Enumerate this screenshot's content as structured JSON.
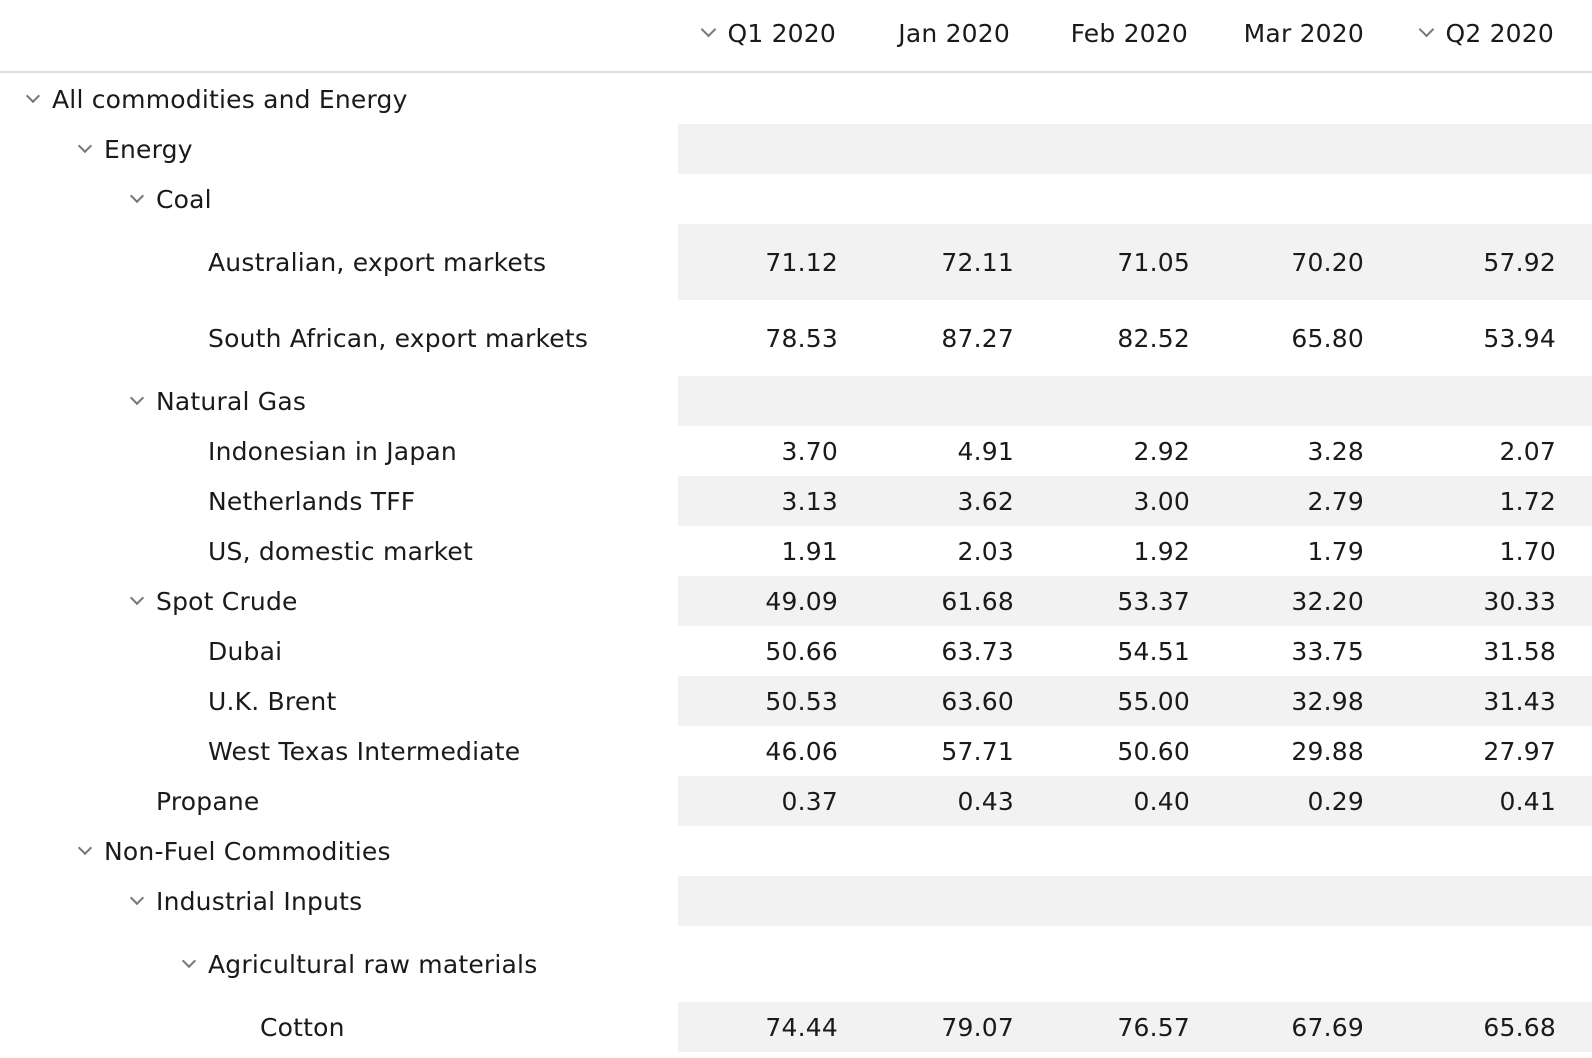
{
  "columns": [
    {
      "label": "Q1 2020",
      "collapsible": true
    },
    {
      "label": "Jan 2020",
      "collapsible": false
    },
    {
      "label": "Feb 2020",
      "collapsible": false
    },
    {
      "label": "Mar 2020",
      "collapsible": false
    },
    {
      "label": "Q2 2020",
      "collapsible": true
    }
  ],
  "rows": [
    {
      "label": "All commodities and Energy",
      "level": 0,
      "expandable": true,
      "values": []
    },
    {
      "label": "Energy",
      "level": 1,
      "expandable": true,
      "values": []
    },
    {
      "label": "Coal",
      "level": 2,
      "expandable": true,
      "values": []
    },
    {
      "label": "Australian, export markets",
      "level": 3,
      "expandable": false,
      "values": [
        "71.12",
        "72.11",
        "71.05",
        "70.20",
        "57.92"
      ]
    },
    {
      "label": "South African, export markets",
      "level": 3,
      "expandable": false,
      "values": [
        "78.53",
        "87.27",
        "82.52",
        "65.80",
        "53.94"
      ]
    },
    {
      "label": "Natural Gas",
      "level": 2,
      "expandable": true,
      "values": []
    },
    {
      "label": "Indonesian in Japan",
      "level": 3,
      "expandable": false,
      "values": [
        "3.70",
        "4.91",
        "2.92",
        "3.28",
        "2.07"
      ]
    },
    {
      "label": "Netherlands TFF",
      "level": 3,
      "expandable": false,
      "values": [
        "3.13",
        "3.62",
        "3.00",
        "2.79",
        "1.72"
      ]
    },
    {
      "label": "US, domestic market",
      "level": 3,
      "expandable": false,
      "values": [
        "1.91",
        "2.03",
        "1.92",
        "1.79",
        "1.70"
      ]
    },
    {
      "label": "Spot Crude",
      "level": 2,
      "expandable": true,
      "values": [
        "49.09",
        "61.68",
        "53.37",
        "32.20",
        "30.33"
      ]
    },
    {
      "label": "Dubai",
      "level": 3,
      "expandable": false,
      "values": [
        "50.66",
        "63.73",
        "54.51",
        "33.75",
        "31.58"
      ]
    },
    {
      "label": "U.K. Brent",
      "level": 3,
      "expandable": false,
      "values": [
        "50.53",
        "63.60",
        "55.00",
        "32.98",
        "31.43"
      ]
    },
    {
      "label": "West Texas Intermediate",
      "level": 3,
      "expandable": false,
      "values": [
        "46.06",
        "57.71",
        "50.60",
        "29.88",
        "27.97"
      ]
    },
    {
      "label": "Propane",
      "level": 2,
      "expandable": false,
      "values": [
        "0.37",
        "0.43",
        "0.40",
        "0.29",
        "0.41"
      ]
    },
    {
      "label": "Non-Fuel Commodities",
      "level": 1,
      "expandable": true,
      "values": []
    },
    {
      "label": "Industrial Inputs",
      "level": 2,
      "expandable": true,
      "values": []
    },
    {
      "label": "Agricultural raw materials",
      "level": 3,
      "expandable": true,
      "values": []
    },
    {
      "label": "Cotton",
      "level": 4,
      "expandable": false,
      "values": [
        "74.44",
        "79.07",
        "76.57",
        "67.69",
        "65.68"
      ]
    }
  ]
}
